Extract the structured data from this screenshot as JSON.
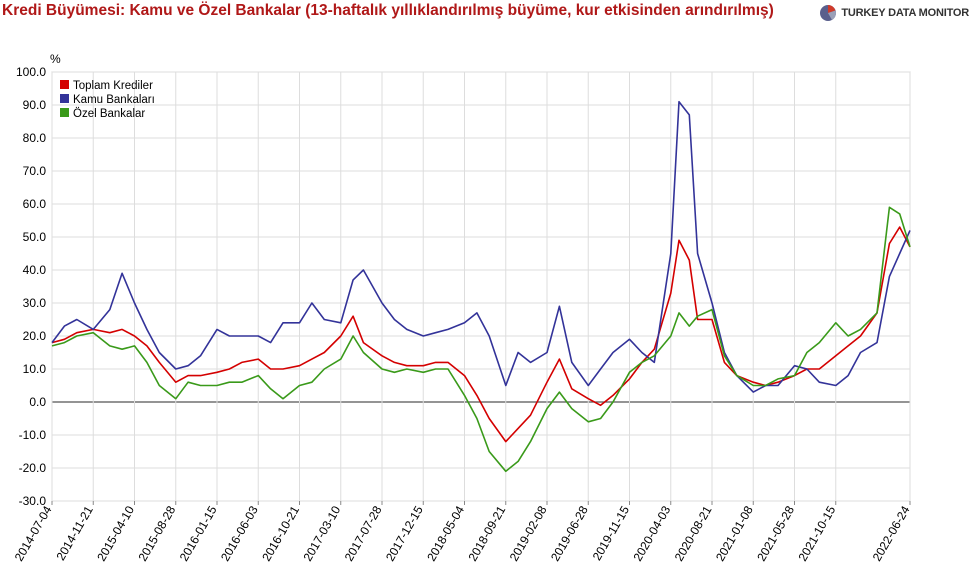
{
  "title": "Kredi Büyümesi: Kamu ve Özel Bankalar (13-haftalık yıllıklandırılmış büyüme, kur etkisinden arındırılmış)",
  "brand": "TURKEY DATA MONITOR",
  "colors": {
    "title": "#b01818",
    "total": "#d40000",
    "public": "#333399",
    "private": "#3a9a1a",
    "grid": "#dddddd",
    "zero": "#555555"
  },
  "chart_data": {
    "type": "line",
    "title": "Kredi Büyümesi: Kamu ve Özel Bankalar (13-haftalık yıllıklandırılmış büyüme, kur etkisinden arındırılmış)",
    "ylabel": "%",
    "ylim": [
      -30,
      100
    ],
    "yticks": [
      "100.0",
      "90.0",
      "80.0",
      "70.0",
      "60.0",
      "50.0",
      "40.0",
      "30.0",
      "20.0",
      "10.0",
      "0.0",
      "-10.0",
      "-20.0",
      "-30.0"
    ],
    "xlim": [
      "2014-07-04",
      "2022-06-24"
    ],
    "xticks": [
      "2014-07-04",
      "2014-11-21",
      "2015-04-10",
      "2015-08-28",
      "2016-01-15",
      "2016-06-03",
      "2016-10-21",
      "2017-03-10",
      "2017-07-28",
      "2017-12-15",
      "2018-05-04",
      "2018-09-21",
      "2019-02-08",
      "2019-06-28",
      "2019-11-15",
      "2020-04-03",
      "2020-08-21",
      "2021-01-08",
      "2021-05-28",
      "2021-10-15",
      "2022-06-24"
    ],
    "grid": true,
    "legend": "top-left",
    "series": [
      {
        "name": "Toplam Krediler",
        "color": "#d40000",
        "x": [
          "2014-07-04",
          "2014-08-15",
          "2014-09-26",
          "2014-11-21",
          "2015-01-16",
          "2015-02-27",
          "2015-04-10",
          "2015-05-22",
          "2015-07-03",
          "2015-08-28",
          "2015-10-09",
          "2015-11-20",
          "2016-01-15",
          "2016-02-26",
          "2016-04-08",
          "2016-06-03",
          "2016-07-15",
          "2016-08-26",
          "2016-10-21",
          "2016-12-02",
          "2017-01-13",
          "2017-03-10",
          "2017-04-21",
          "2017-05-26",
          "2017-07-28",
          "2017-09-08",
          "2017-10-20",
          "2017-12-15",
          "2018-01-26",
          "2018-03-09",
          "2018-05-04",
          "2018-06-15",
          "2018-07-27",
          "2018-09-21",
          "2018-11-02",
          "2018-12-14",
          "2019-02-08",
          "2019-03-22",
          "2019-05-03",
          "2019-06-28",
          "2019-08-09",
          "2019-09-20",
          "2019-11-15",
          "2019-12-27",
          "2020-02-07",
          "2020-04-03",
          "2020-05-01",
          "2020-06-05",
          "2020-07-03",
          "2020-08-21",
          "2020-10-02",
          "2020-11-13",
          "2021-01-08",
          "2021-02-19",
          "2021-04-02",
          "2021-05-28",
          "2021-07-09",
          "2021-08-20",
          "2021-10-15",
          "2021-11-26",
          "2022-01-07",
          "2022-03-04",
          "2022-04-15",
          "2022-05-20",
          "2022-06-24"
        ],
        "values": [
          18,
          19,
          21,
          22,
          21,
          22,
          20,
          17,
          12,
          6,
          8,
          8,
          9,
          10,
          12,
          13,
          10,
          10,
          11,
          13,
          15,
          20,
          26,
          18,
          14,
          12,
          11,
          11,
          12,
          12,
          8,
          2,
          -5,
          -12,
          -8,
          -4,
          6,
          13,
          4,
          1,
          -1,
          2,
          7,
          12,
          16,
          33,
          49,
          43,
          25,
          25,
          12,
          8,
          6,
          5,
          6,
          8,
          10,
          10,
          14,
          17,
          20,
          27,
          48,
          53,
          47
        ]
      },
      {
        "name": "Kamu Bankaları",
        "color": "#333399",
        "x": [
          "2014-07-04",
          "2014-08-15",
          "2014-09-26",
          "2014-11-21",
          "2015-01-16",
          "2015-02-27",
          "2015-04-10",
          "2015-05-22",
          "2015-07-03",
          "2015-08-28",
          "2015-10-09",
          "2015-11-20",
          "2016-01-15",
          "2016-02-26",
          "2016-04-08",
          "2016-06-03",
          "2016-07-15",
          "2016-08-26",
          "2016-10-21",
          "2016-12-02",
          "2017-01-13",
          "2017-03-10",
          "2017-04-21",
          "2017-05-26",
          "2017-07-28",
          "2017-09-08",
          "2017-10-20",
          "2017-12-15",
          "2018-01-26",
          "2018-03-09",
          "2018-05-04",
          "2018-06-15",
          "2018-07-27",
          "2018-09-21",
          "2018-11-02",
          "2018-12-14",
          "2019-02-08",
          "2019-03-22",
          "2019-05-03",
          "2019-06-28",
          "2019-08-09",
          "2019-09-20",
          "2019-11-15",
          "2019-12-27",
          "2020-02-07",
          "2020-04-03",
          "2020-05-01",
          "2020-06-05",
          "2020-07-03",
          "2020-08-21",
          "2020-10-02",
          "2020-11-13",
          "2021-01-08",
          "2021-02-19",
          "2021-04-02",
          "2021-05-28",
          "2021-07-09",
          "2021-08-20",
          "2021-10-15",
          "2021-11-26",
          "2022-01-07",
          "2022-03-04",
          "2022-04-15",
          "2022-05-20",
          "2022-06-24"
        ],
        "values": [
          18,
          23,
          25,
          22,
          28,
          39,
          30,
          22,
          15,
          10,
          11,
          14,
          22,
          20,
          20,
          20,
          18,
          24,
          24,
          30,
          25,
          24,
          37,
          40,
          30,
          25,
          22,
          20,
          21,
          22,
          24,
          27,
          20,
          5,
          15,
          12,
          15,
          29,
          12,
          5,
          10,
          15,
          19,
          15,
          12,
          45,
          91,
          87,
          45,
          30,
          15,
          8,
          3,
          5,
          5,
          11,
          10,
          6,
          5,
          8,
          15,
          18,
          38,
          45,
          52
        ]
      },
      {
        "name": "Özel Bankalar",
        "color": "#3a9a1a",
        "x": [
          "2014-07-04",
          "2014-08-15",
          "2014-09-26",
          "2014-11-21",
          "2015-01-16",
          "2015-02-27",
          "2015-04-10",
          "2015-05-22",
          "2015-07-03",
          "2015-08-28",
          "2015-10-09",
          "2015-11-20",
          "2016-01-15",
          "2016-02-26",
          "2016-04-08",
          "2016-06-03",
          "2016-07-15",
          "2016-08-26",
          "2016-10-21",
          "2016-12-02",
          "2017-01-13",
          "2017-03-10",
          "2017-04-21",
          "2017-05-26",
          "2017-07-28",
          "2017-09-08",
          "2017-10-20",
          "2017-12-15",
          "2018-01-26",
          "2018-03-09",
          "2018-05-04",
          "2018-06-15",
          "2018-07-27",
          "2018-09-21",
          "2018-11-02",
          "2018-12-14",
          "2019-02-08",
          "2019-03-22",
          "2019-05-03",
          "2019-06-28",
          "2019-08-09",
          "2019-09-20",
          "2019-11-15",
          "2019-12-27",
          "2020-02-07",
          "2020-04-03",
          "2020-05-01",
          "2020-06-05",
          "2020-07-03",
          "2020-08-21",
          "2020-10-02",
          "2020-11-13",
          "2021-01-08",
          "2021-02-19",
          "2021-04-02",
          "2021-05-28",
          "2021-07-09",
          "2021-08-20",
          "2021-10-15",
          "2021-11-26",
          "2022-01-07",
          "2022-03-04",
          "2022-04-15",
          "2022-05-20",
          "2022-06-24"
        ],
        "values": [
          17,
          18,
          20,
          21,
          17,
          16,
          17,
          12,
          5,
          1,
          6,
          5,
          5,
          6,
          6,
          8,
          4,
          1,
          5,
          6,
          10,
          13,
          20,
          15,
          10,
          9,
          10,
          9,
          10,
          10,
          2,
          -5,
          -15,
          -21,
          -18,
          -12,
          -2,
          3,
          -2,
          -6,
          -5,
          0,
          9,
          12,
          14,
          20,
          27,
          23,
          26,
          28,
          14,
          8,
          5,
          5,
          7,
          8,
          15,
          18,
          24,
          20,
          22,
          27,
          59,
          57,
          47
        ]
      }
    ]
  }
}
